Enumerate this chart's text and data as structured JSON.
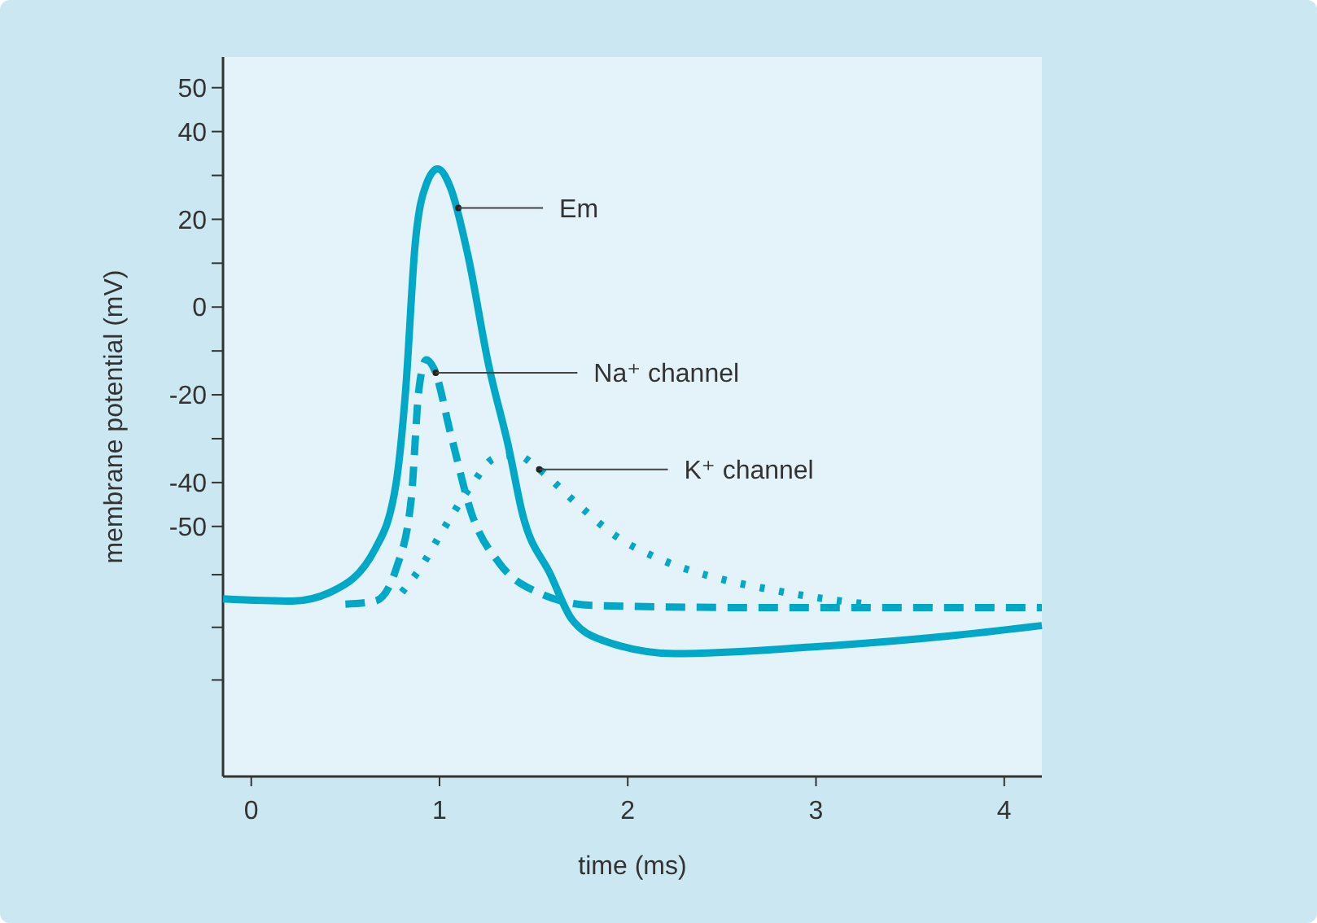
{
  "chart_data": {
    "type": "line",
    "xlabel": "time (ms)",
    "ylabel": "membrane potential (mV)",
    "xlim": [
      -0.15,
      4.2
    ],
    "xticks": [
      0,
      1,
      2,
      3,
      4
    ],
    "ylim": [
      -107,
      57
    ],
    "yticks": [
      50,
      40,
      {
        "value": 30,
        "label": null
      },
      20,
      {
        "value": 10,
        "label": null
      },
      0,
      {
        "value": -10,
        "label": null
      },
      -20,
      {
        "value": -30,
        "label": null
      },
      -40,
      -50,
      {
        "value": -61,
        "label": null
      },
      {
        "value": -73,
        "label": null
      },
      {
        "value": -85,
        "label": null
      }
    ],
    "grid": false,
    "marker": "none",
    "series": [
      {
        "color": "#00a8c8",
        "line_style": "solid",
        "x": [
          -0.15,
          0.22,
          0.42,
          0.66,
          0.77,
          0.82,
          0.87,
          0.93,
          0.99,
          1.06,
          1.15,
          1.26,
          1.37,
          1.44,
          1.59,
          1.7,
          1.87,
          2.25,
          2.97,
          3.7,
          4.2
        ],
        "values": [
          -66.5,
          -67,
          -65,
          -55,
          -40,
          -19,
          14,
          28,
          31.5,
          27,
          12,
          -13,
          -32.5,
          -47,
          -61,
          -71,
          -76,
          -79,
          -77.5,
          -75,
          -72.6
        ]
      },
      {
        "color": "#00a8c8",
        "line_style": "dashed",
        "x": [
          0.5,
          0.66,
          0.77,
          0.85,
          0.89,
          0.93,
          0.97,
          1.06,
          1.17,
          1.32,
          1.52,
          1.81,
          2.68,
          4.2
        ],
        "values": [
          -67.7,
          -67,
          -59.6,
          -43.7,
          -19,
          -12,
          -14,
          -29,
          -47,
          -58.5,
          -65,
          -68,
          -68.5,
          -68.5
        ]
      },
      {
        "color": "#00a8c8",
        "line_style": "dotted",
        "x": [
          0.8,
          0.89,
          1.03,
          1.18,
          1.29,
          1.41,
          1.52,
          1.73,
          1.93,
          2.19,
          2.45,
          2.71,
          2.97,
          3.29
        ],
        "values": [
          -65,
          -60,
          -50,
          -40,
          -34.5,
          -33.7,
          -36.7,
          -44.8,
          -52,
          -57.8,
          -61.5,
          -64,
          -66,
          -67.8
        ]
      }
    ],
    "annotations": [
      {
        "text": "Em",
        "x": 1.1,
        "y": 22.6
      },
      {
        "text": "Na⁺ channel",
        "x": 0.98,
        "y": -15
      },
      {
        "text": "K⁺ channel",
        "x": 1.53,
        "y": -37
      }
    ]
  }
}
